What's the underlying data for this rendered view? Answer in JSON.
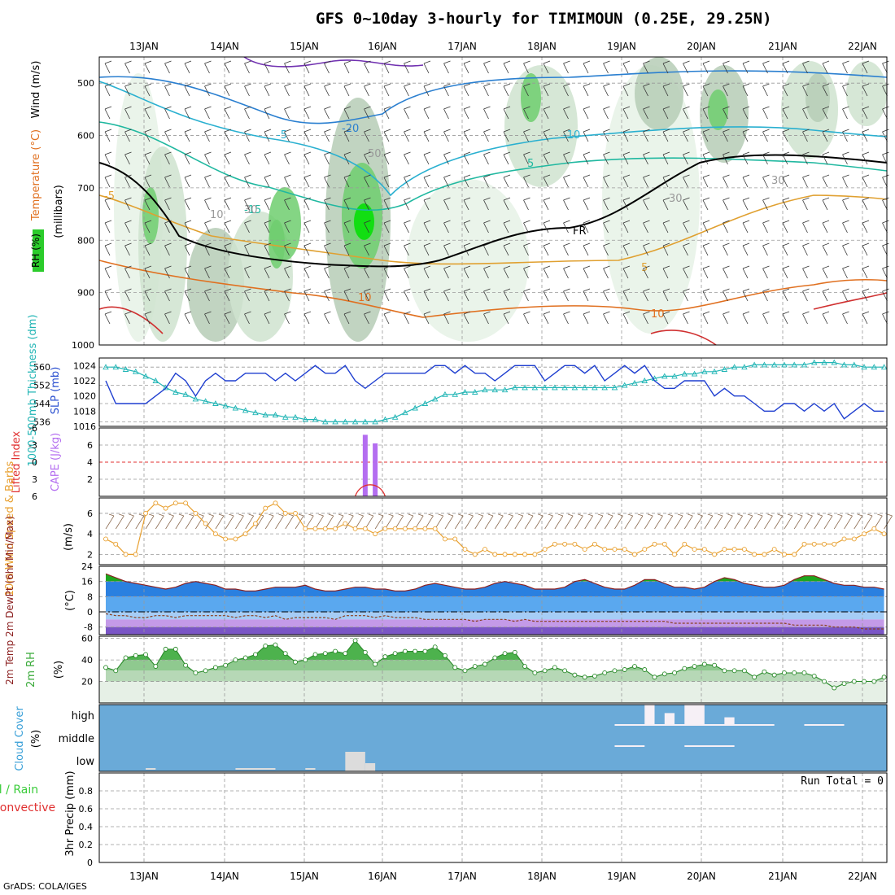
{
  "header": {
    "title": "GFS 0~10day 3-hourly for TIMIMOUN (0.25E, 29.25N)"
  },
  "footer": {
    "credit": "GrADS: COLA/IGES"
  },
  "dates": [
    "13JAN",
    "14JAN",
    "15JAN",
    "16JAN",
    "17JAN",
    "18JAN",
    "19JAN",
    "20JAN",
    "21JAN",
    "22JAN"
  ],
  "colors": {
    "thickness": "#21b5b5",
    "slp": "#1f3fd0",
    "cape": "#b46ef0",
    "lifted": "#e03030",
    "wind_speed": "#e8a030",
    "barbs": "#8b6a4f",
    "rh": "#3aaa3a",
    "cloud_bg": "#6aaad8",
    "grid": "#999999"
  },
  "panels": {
    "upper": {
      "ylabels": [
        "Wind (m/s)",
        "Temperature (°C)",
        "RH (%)"
      ],
      "axis_label": "(millibars)",
      "yticks": [
        "500",
        "600",
        "700",
        "800",
        "900",
        "1000"
      ],
      "contour_labels": [
        "-5",
        "-20",
        "-10",
        "-5",
        "-15",
        "5",
        "10",
        "5",
        "10",
        "FR",
        "10",
        "30",
        "30",
        "30",
        "50"
      ]
    },
    "thickness_slp": {
      "ylabel_left": "1000-500mb Thickness (dm)",
      "ylabel_right": "SLP (mb)",
      "left_ticks": [
        "560",
        "552",
        "544",
        "536"
      ],
      "right_ticks": [
        "1024",
        "1022",
        "1020",
        "1018",
        "1016"
      ]
    },
    "cape_li": {
      "ylabel_left": "Lifted Index",
      "ylabel_right": "CAPE (J/kg)",
      "left_ticks": [
        "-6",
        "-3",
        "0",
        "3",
        "6"
      ],
      "right_ticks": [
        "6",
        "4",
        "2"
      ]
    },
    "wind10": {
      "ylabel": "10m Wind Speed & Barbs",
      "unit": "(m/s)",
      "ticks": [
        "6",
        "4",
        "2"
      ]
    },
    "temp2m": {
      "ylabel": "2m Temp 2m DewPt (6hr Min/Max)",
      "unit": "(°C)",
      "ticks": [
        "24",
        "16",
        "8",
        "0",
        "-8"
      ]
    },
    "rh2m": {
      "ylabel": "2m RH",
      "unit": "(%)",
      "ticks": [
        "60",
        "40",
        "20"
      ]
    },
    "cloud": {
      "ylabel": "Cloud Cover",
      "unit": "(%)",
      "levels": [
        "high",
        "middle",
        "low"
      ]
    },
    "precip": {
      "ylabel_green": "Total / Rain",
      "ylabel_red": "Convective",
      "ylabel_axis": "3hr Precip (mm)",
      "ticks": [
        "0.8",
        "0.6",
        "0.4",
        "0.2",
        "0"
      ],
      "run_total": "Run Total = 0"
    }
  },
  "chart_data": [
    {
      "type": "line",
      "name": "1000-500mb Thickness (dm)",
      "x_start": "12JAN 15Z",
      "x_step_hours": 3,
      "ylim": [
        534,
        564
      ],
      "values": [
        560,
        560,
        559,
        558,
        556,
        554,
        551,
        549,
        548,
        546,
        545,
        544,
        543,
        542,
        541,
        540,
        539,
        539,
        538,
        538,
        537,
        537,
        536,
        536,
        536,
        536,
        536,
        536,
        537,
        538,
        540,
        542,
        544,
        546,
        548,
        548,
        549,
        549,
        550,
        550,
        550,
        551,
        551,
        551,
        551,
        551,
        551,
        551,
        551,
        551,
        551,
        551,
        552,
        553,
        554,
        555,
        556,
        556,
        557,
        557,
        558,
        558,
        559,
        560,
        560,
        561,
        561,
        561,
        561,
        561,
        561,
        562,
        562,
        562,
        561,
        561,
        560,
        560,
        560
      ]
    },
    {
      "type": "line",
      "name": "SLP (mb)",
      "ylim": [
        1016,
        1025
      ],
      "values": [
        1022,
        1019,
        1019,
        1019,
        1019,
        1020,
        1021,
        1023,
        1022,
        1020,
        1022,
        1023,
        1022,
        1022,
        1023,
        1023,
        1023,
        1022,
        1023,
        1022,
        1023,
        1024,
        1023,
        1023,
        1024,
        1022,
        1021,
        1022,
        1023,
        1023,
        1023,
        1023,
        1023,
        1024,
        1024,
        1023,
        1024,
        1023,
        1023,
        1022,
        1023,
        1024,
        1024,
        1024,
        1022,
        1023,
        1024,
        1024,
        1023,
        1024,
        1022,
        1023,
        1024,
        1023,
        1024,
        1022,
        1021,
        1021,
        1022,
        1022,
        1022,
        1020,
        1021,
        1020,
        1020,
        1019,
        1018,
        1018,
        1019,
        1019,
        1018,
        1019,
        1018,
        1019,
        1017,
        1018,
        1019,
        1018,
        1018
      ]
    },
    {
      "type": "bar",
      "name": "CAPE (J/kg)",
      "ylim": [
        0,
        8
      ],
      "bars": [
        {
          "x_index": 26,
          "value": 7.2
        },
        {
          "x_index": 27,
          "value": 6.2
        }
      ]
    },
    {
      "type": "line",
      "name": "10m Wind Speed (m/s)",
      "ylim": [
        1,
        7.5
      ],
      "values": [
        3.5,
        3,
        2,
        2,
        6,
        7,
        6.5,
        7,
        7,
        6,
        5,
        4,
        3.5,
        3.5,
        4,
        5,
        6.5,
        7,
        6,
        6,
        4.5,
        4.5,
        4.5,
        4.5,
        5,
        4.5,
        4.5,
        4,
        4.5,
        4.5,
        4.5,
        4.5,
        4.5,
        4.5,
        3.5,
        3.5,
        2.5,
        2,
        2.5,
        2,
        2,
        2,
        2,
        2,
        2.5,
        3,
        3,
        3,
        2.5,
        3,
        2.5,
        2.5,
        2.5,
        2,
        2.5,
        3,
        3,
        2,
        3,
        2.5,
        2.5,
        2,
        2.5,
        2.5,
        2.5,
        2,
        2,
        2.5,
        2,
        2,
        3,
        3,
        3,
        3,
        3.5,
        3.5,
        4,
        4.5,
        4
      ]
    },
    {
      "type": "area",
      "name": "2m Temp (°C)",
      "ylim": [
        -12,
        24
      ],
      "values": [
        20,
        18,
        16,
        15,
        14,
        13,
        12,
        13,
        15,
        16,
        15,
        14,
        12,
        12,
        11,
        11,
        12,
        13,
        13,
        13,
        14,
        12,
        11,
        11,
        12,
        13,
        13,
        12,
        12,
        11,
        11,
        12,
        14,
        15,
        14,
        13,
        12,
        12,
        13,
        15,
        16,
        15,
        14,
        12,
        12,
        12,
        13,
        16,
        17,
        15,
        13,
        12,
        12,
        14,
        17,
        17,
        15,
        13,
        13,
        12,
        13,
        16,
        18,
        17,
        15,
        14,
        13,
        13,
        14,
        17,
        19,
        19,
        17,
        15,
        14,
        14,
        13,
        13,
        12
      ]
    },
    {
      "type": "line",
      "name": "2m DewPt (°C)",
      "values": [
        -1,
        -2,
        -2,
        -3,
        -3,
        -2,
        -2,
        -3,
        -2,
        -2,
        -2,
        -2,
        -2,
        -3,
        -2,
        -2,
        -3,
        -2,
        -4,
        -3,
        -3,
        -3,
        -3,
        -4,
        -2,
        -2,
        -2,
        -3,
        -2,
        -3,
        -3,
        -3,
        -4,
        -4,
        -4,
        -4,
        -4,
        -5,
        -4,
        -4,
        -4,
        -5,
        -4,
        -5,
        -5,
        -5,
        -5,
        -5,
        -5,
        -5,
        -5,
        -5,
        -5,
        -5,
        -5,
        -5,
        -5,
        -6,
        -6,
        -6,
        -6,
        -6,
        -6,
        -6,
        -6,
        -6,
        -6,
        -6,
        -6,
        -7,
        -7,
        -7,
        -7,
        -8,
        -8,
        -8,
        -9,
        -9,
        -9
      ]
    },
    {
      "type": "area",
      "name": "2m RH (%)",
      "ylim": [
        0,
        62
      ],
      "values": [
        33,
        30,
        42,
        44,
        45,
        34,
        50,
        50,
        35,
        28,
        30,
        33,
        35,
        40,
        42,
        45,
        53,
        54,
        46,
        38,
        40,
        45,
        46,
        48,
        46,
        58,
        47,
        36,
        43,
        46,
        48,
        48,
        48,
        52,
        44,
        33,
        30,
        34,
        36,
        42,
        46,
        47,
        34,
        28,
        30,
        33,
        30,
        26,
        24,
        25,
        28,
        30,
        31,
        34,
        31,
        24,
        27,
        28,
        32,
        34,
        36,
        35,
        30,
        30,
        30,
        24,
        29,
        26,
        28,
        28,
        28,
        25,
        20,
        14,
        18,
        20,
        20,
        20,
        24
      ]
    },
    {
      "type": "bar",
      "name": "Cloud Cover (%)",
      "levels": [
        "high",
        "middle",
        "low"
      ],
      "high_cells": [
        {
          "start_index": 54,
          "end_index": 55,
          "value": 100
        },
        {
          "start_index": 56,
          "end_index": 57,
          "value": 60
        },
        {
          "start_index": 58,
          "end_index": 60,
          "value": 100
        },
        {
          "start_index": 62,
          "end_index": 63,
          "value": 40
        }
      ],
      "low_cells": [
        {
          "start_index": 24,
          "end_index": 26,
          "value": 100
        },
        {
          "start_index": 26,
          "end_index": 27,
          "value": 50
        }
      ]
    },
    {
      "type": "line",
      "name": "3hr Precip (mm)",
      "ylim": [
        0,
        1
      ],
      "values": []
    }
  ]
}
